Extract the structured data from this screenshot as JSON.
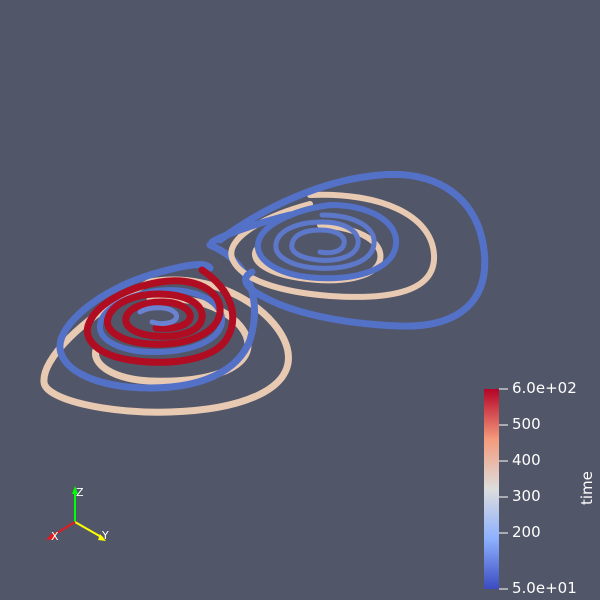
{
  "scene": {
    "background": "#525669",
    "tube_colors": {
      "early": "#5471c8",
      "mid": "#e8c9b1",
      "late": "#b00c22"
    }
  },
  "colorbar": {
    "title": "time",
    "max_label": "6.0e+02",
    "min_label": "5.0e+01",
    "range": [
      50,
      600
    ],
    "ticks": [
      "500",
      "400",
      "300",
      "200"
    ],
    "colors": [
      "#3b4cc0",
      "#8db0fe",
      "#dddddd",
      "#f49a7b",
      "#b40426"
    ]
  },
  "axes": {
    "x_label": "X",
    "y_label": "Y",
    "z_label": "Z",
    "x_color": "#e3191c",
    "y_color": "#ffff00",
    "z_color": "#00ff00"
  }
}
